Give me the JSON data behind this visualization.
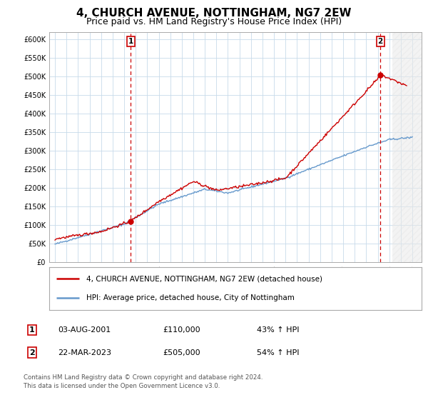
{
  "title": "4, CHURCH AVENUE, NOTTINGHAM, NG7 2EW",
  "subtitle": "Price paid vs. HM Land Registry's House Price Index (HPI)",
  "title_fontsize": 11,
  "subtitle_fontsize": 9,
  "ylim": [
    0,
    620000
  ],
  "yticks": [
    0,
    50000,
    100000,
    150000,
    200000,
    250000,
    300000,
    350000,
    400000,
    450000,
    500000,
    550000,
    600000
  ],
  "ytick_labels": [
    "£0",
    "£50K",
    "£100K",
    "£150K",
    "£200K",
    "£250K",
    "£300K",
    "£350K",
    "£400K",
    "£450K",
    "£500K",
    "£550K",
    "£600K"
  ],
  "xlim_min": 1994.5,
  "xlim_max": 2026.8,
  "background_color": "#ffffff",
  "grid_color": "#c8daea",
  "sale1_x": 2001.58,
  "sale1_y": 110000,
  "sale2_x": 2023.22,
  "sale2_y": 505000,
  "sale1_date": "03-AUG-2001",
  "sale1_price": "£110,000",
  "sale1_hpi": "43% ↑ HPI",
  "sale2_date": "22-MAR-2023",
  "sale2_price": "£505,000",
  "sale2_hpi": "54% ↑ HPI",
  "legend_line1": "4, CHURCH AVENUE, NOTTINGHAM, NG7 2EW (detached house)",
  "legend_line2": "HPI: Average price, detached house, City of Nottingham",
  "footer1": "Contains HM Land Registry data © Crown copyright and database right 2024.",
  "footer2": "This data is licensed under the Open Government Licence v3.0.",
  "red_color": "#cc0000",
  "blue_color": "#6699cc",
  "hatch_start": 2024.25
}
